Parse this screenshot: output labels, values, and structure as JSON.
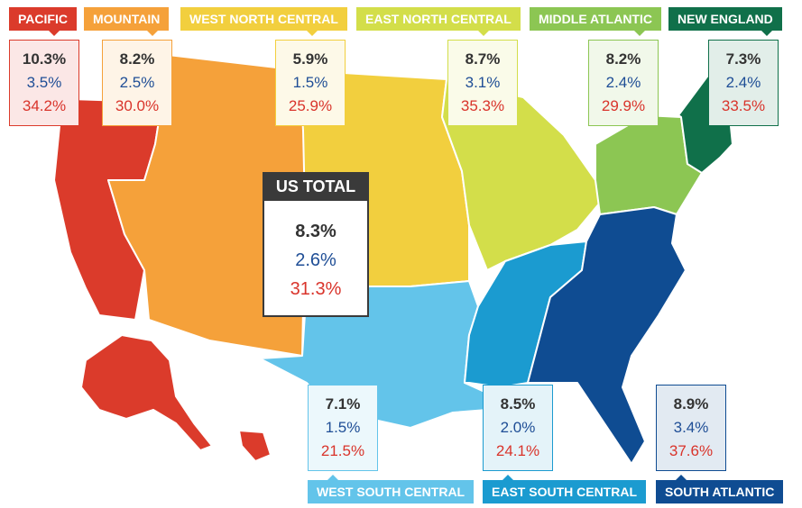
{
  "regions": {
    "pacific": {
      "label": "PACIFIC",
      "color": "#db3b2b",
      "values": [
        "10.3%",
        "3.5%",
        "34.2%"
      ]
    },
    "mountain": {
      "label": "MOUNTAIN",
      "color": "#f5a13a",
      "values": [
        "8.2%",
        "2.5%",
        "30.0%"
      ]
    },
    "west_north_central": {
      "label": "WEST NORTH CENTRAL",
      "color": "#f2cf3e",
      "values": [
        "5.9%",
        "1.5%",
        "25.9%"
      ]
    },
    "east_north_central": {
      "label": "EAST NORTH CENTRAL",
      "color": "#d3de4a",
      "values": [
        "8.7%",
        "3.1%",
        "35.3%"
      ]
    },
    "middle_atlantic": {
      "label": "MIDDLE ATLANTIC",
      "color": "#8cc653",
      "values": [
        "8.2%",
        "2.4%",
        "29.9%"
      ]
    },
    "new_england": {
      "label": "NEW ENGLAND",
      "color": "#10704a",
      "values": [
        "7.3%",
        "2.4%",
        "33.5%"
      ]
    },
    "west_south_central": {
      "label": "WEST SOUTH CENTRAL",
      "color": "#63c4ea",
      "values": [
        "7.1%",
        "1.5%",
        "21.5%"
      ]
    },
    "east_south_central": {
      "label": "EAST SOUTH CENTRAL",
      "color": "#1b9bd0",
      "values": [
        "8.5%",
        "2.0%",
        "24.1%"
      ]
    },
    "south_atlantic": {
      "label": "SOUTH ATLANTIC",
      "color": "#0f4c92",
      "values": [
        "8.9%",
        "3.4%",
        "37.6%"
      ]
    }
  },
  "us_total": {
    "label": "US TOTAL",
    "values": [
      "8.3%",
      "2.6%",
      "31.3%"
    ]
  }
}
